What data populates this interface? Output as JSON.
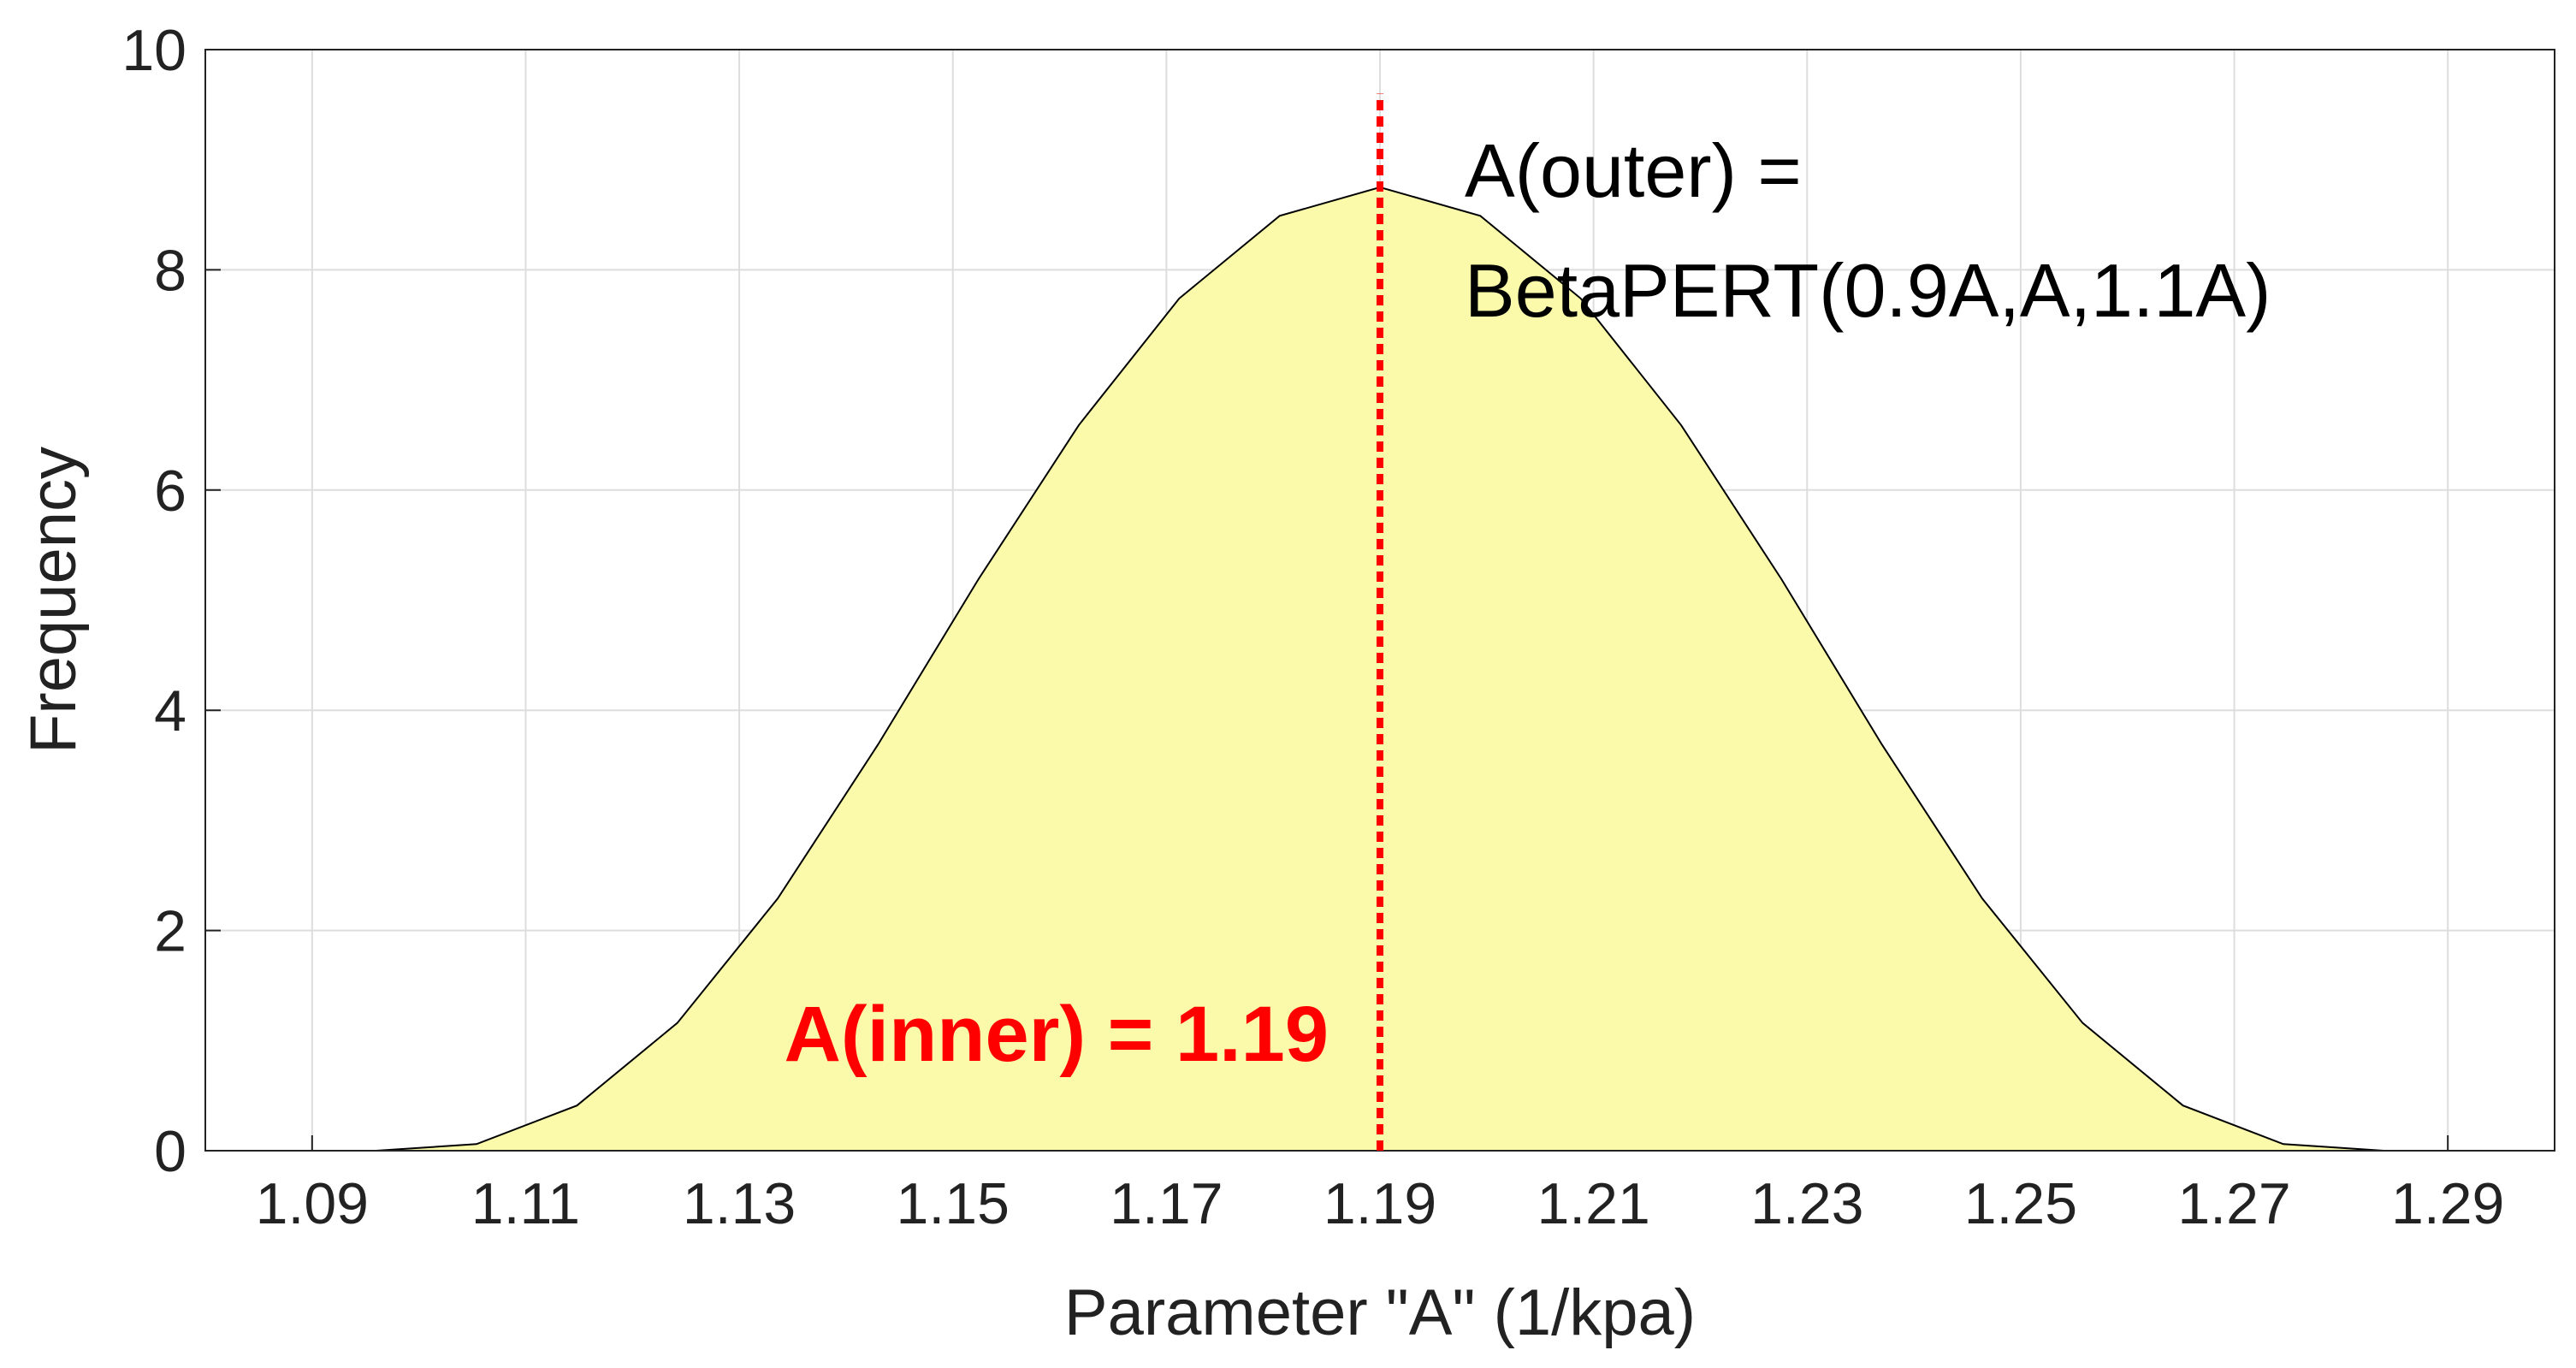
{
  "chart_data": {
    "type": "area",
    "xlabel": "Parameter \"A\" (1/kpa)",
    "ylabel": "Frequency",
    "x": [
      1.096,
      1.1054,
      1.1148,
      1.1242,
      1.1336,
      1.143,
      1.1524,
      1.1618,
      1.1712,
      1.1806,
      1.19,
      1.1994,
      1.2088,
      1.2182,
      1.2276,
      1.237,
      1.2464,
      1.2558,
      1.2652,
      1.2746,
      1.284
    ],
    "values": [
      0,
      0.06,
      0.41,
      1.16,
      2.29,
      3.69,
      5.19,
      6.59,
      7.74,
      8.49,
      8.75,
      8.49,
      7.74,
      6.59,
      5.19,
      3.69,
      2.29,
      1.16,
      0.41,
      0.06,
      0
    ],
    "color": "#fafaaa",
    "line_color": "#000000",
    "xlim": [
      1.08,
      1.3
    ],
    "xticks": [
      1.09,
      1.11,
      1.13,
      1.15,
      1.17,
      1.19,
      1.21,
      1.23,
      1.25,
      1.27,
      1.29
    ],
    "ylim": [
      0,
      10
    ],
    "yticks": [
      0,
      2,
      4,
      6,
      8,
      10
    ],
    "grid": true,
    "vline": {
      "x": 1.19,
      "top": 9.6,
      "color": "#ff0000",
      "label": "A(inner) = 1.19"
    },
    "annotation": [
      "A(outer) =",
      "BetaPERT(0.9A,A,1.1A)"
    ]
  }
}
